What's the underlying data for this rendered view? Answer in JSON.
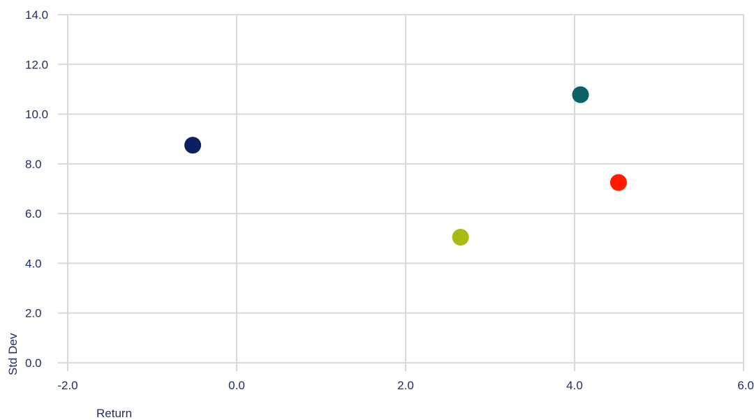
{
  "chart_data": {
    "type": "scatter",
    "xlabel": "Return",
    "ylabel": "Std Dev",
    "xlim": [
      -2.0,
      6.0
    ],
    "ylim": [
      0.0,
      14.0
    ],
    "x_ticks": [
      "-2.0",
      "0.0",
      "2.0",
      "4.0",
      "6.0"
    ],
    "y_ticks": [
      "0.0",
      "2.0",
      "4.0",
      "6.0",
      "8.0",
      "10.0",
      "12.0",
      "14.0"
    ],
    "grid": true,
    "points": [
      {
        "x": -0.52,
        "y": 8.75,
        "color": "#0c2061"
      },
      {
        "x": 2.65,
        "y": 5.05,
        "color": "#a8bb12"
      },
      {
        "x": 4.07,
        "y": 10.78,
        "color": "#0b6365"
      },
      {
        "x": 4.52,
        "y": 7.25,
        "color": "#ff1a00"
      }
    ]
  }
}
